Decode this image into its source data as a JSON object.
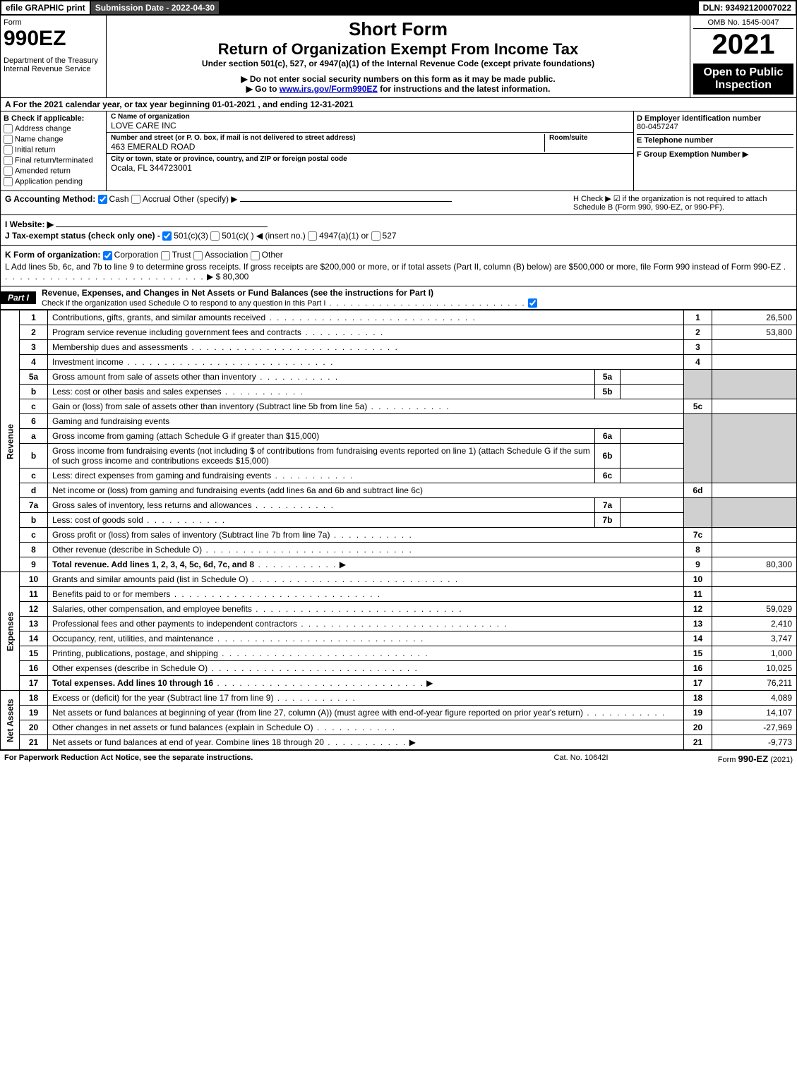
{
  "topbar": {
    "efile": "efile GRAPHIC print",
    "sub_date": "Submission Date - 2022-04-30",
    "dln": "DLN: 93492120007022"
  },
  "header": {
    "form_label": "Form",
    "form_no": "990EZ",
    "dept": "Department of the Treasury\nInternal Revenue Service",
    "short_form": "Short Form",
    "return_title": "Return of Organization Exempt From Income Tax",
    "under": "Under section 501(c), 527, or 4947(a)(1) of the Internal Revenue Code (except private foundations)",
    "no_ssn": "▶ Do not enter social security numbers on this form as it may be made public.",
    "goto_pre": "▶ Go to ",
    "goto_link": "www.irs.gov/Form990EZ",
    "goto_post": " for instructions and the latest information.",
    "omb": "OMB No. 1545-0047",
    "year": "2021",
    "open": "Open to Public Inspection"
  },
  "section_a": "A  For the 2021 calendar year, or tax year beginning 01-01-2021 , and ending 12-31-2021",
  "col_b": {
    "hdr": "B  Check if applicable:",
    "items": [
      "Address change",
      "Name change",
      "Initial return",
      "Final return/terminated",
      "Amended return",
      "Application pending"
    ]
  },
  "col_c": {
    "name_lbl": "C Name of organization",
    "name": "LOVE CARE INC",
    "street_lbl": "Number and street (or P. O. box, if mail is not delivered to street address)",
    "street": "463 EMERALD ROAD",
    "room_lbl": "Room/suite",
    "city_lbl": "City or town, state or province, country, and ZIP or foreign postal code",
    "city": "Ocala, FL  344723001"
  },
  "col_d": {
    "ein_lbl": "D Employer identification number",
    "ein": "80-0457247",
    "tel_lbl": "E Telephone number",
    "tel": "",
    "grp_lbl": "F Group Exemption Number  ▶",
    "grp": ""
  },
  "g": {
    "label": "G Accounting Method:",
    "cash": "Cash",
    "accrual": "Accrual",
    "other": "Other (specify) ▶"
  },
  "h": "H  Check ▶ ☑ if the organization is not required to attach Schedule B (Form 990, 990-EZ, or 990-PF).",
  "i": {
    "label": "I Website: ▶"
  },
  "j": {
    "label": "J Tax-exempt status (check only one) -",
    "o1": "501(c)(3)",
    "o2": "501(c)(  ) ◀ (insert no.)",
    "o3": "4947(a)(1) or",
    "o4": "527"
  },
  "k": {
    "label": "K Form of organization:",
    "o1": "Corporation",
    "o2": "Trust",
    "o3": "Association",
    "o4": "Other"
  },
  "l": {
    "text": "L Add lines 5b, 6c, and 7b to line 9 to determine gross receipts. If gross receipts are $200,000 or more, or if total assets (Part II, column (B) below) are $500,000 or more, file Form 990 instead of Form 990-EZ",
    "amount": "▶ $ 80,300"
  },
  "part1": {
    "tab": "Part I",
    "title": "Revenue, Expenses, and Changes in Net Assets or Fund Balances (see the instructions for Part I)",
    "check_line": "Check if the organization used Schedule O to respond to any question in this Part I"
  },
  "sections": {
    "revenue": "Revenue",
    "expenses": "Expenses",
    "netassets": "Net Assets"
  },
  "rows": {
    "r1": {
      "n": "1",
      "d": "Contributions, gifts, grants, and similar amounts received",
      "ln": "1",
      "v": "26,500"
    },
    "r2": {
      "n": "2",
      "d": "Program service revenue including government fees and contracts",
      "ln": "2",
      "v": "53,800"
    },
    "r3": {
      "n": "3",
      "d": "Membership dues and assessments",
      "ln": "3",
      "v": ""
    },
    "r4": {
      "n": "4",
      "d": "Investment income",
      "ln": "4",
      "v": ""
    },
    "r5a": {
      "n": "5a",
      "d": "Gross amount from sale of assets other than inventory",
      "sub": "5a"
    },
    "r5b": {
      "n": "b",
      "d": "Less: cost or other basis and sales expenses",
      "sub": "5b"
    },
    "r5c": {
      "n": "c",
      "d": "Gain or (loss) from sale of assets other than inventory (Subtract line 5b from line 5a)",
      "ln": "5c",
      "v": ""
    },
    "r6": {
      "n": "6",
      "d": "Gaming and fundraising events"
    },
    "r6a": {
      "n": "a",
      "d": "Gross income from gaming (attach Schedule G if greater than $15,000)",
      "sub": "6a"
    },
    "r6b": {
      "n": "b",
      "d": "Gross income from fundraising events (not including $                  of contributions from fundraising events reported on line 1) (attach Schedule G if the sum of such gross income and contributions exceeds $15,000)",
      "sub": "6b"
    },
    "r6c": {
      "n": "c",
      "d": "Less: direct expenses from gaming and fundraising events",
      "sub": "6c"
    },
    "r6d": {
      "n": "d",
      "d": "Net income or (loss) from gaming and fundraising events (add lines 6a and 6b and subtract line 6c)",
      "ln": "6d",
      "v": ""
    },
    "r7a": {
      "n": "7a",
      "d": "Gross sales of inventory, less returns and allowances",
      "sub": "7a"
    },
    "r7b": {
      "n": "b",
      "d": "Less: cost of goods sold",
      "sub": "7b"
    },
    "r7c": {
      "n": "c",
      "d": "Gross profit or (loss) from sales of inventory (Subtract line 7b from line 7a)",
      "ln": "7c",
      "v": ""
    },
    "r8": {
      "n": "8",
      "d": "Other revenue (describe in Schedule O)",
      "ln": "8",
      "v": ""
    },
    "r9": {
      "n": "9",
      "d": "Total revenue. Add lines 1, 2, 3, 4, 5c, 6d, 7c, and 8",
      "ln": "9",
      "v": "80,300"
    },
    "r10": {
      "n": "10",
      "d": "Grants and similar amounts paid (list in Schedule O)",
      "ln": "10",
      "v": ""
    },
    "r11": {
      "n": "11",
      "d": "Benefits paid to or for members",
      "ln": "11",
      "v": ""
    },
    "r12": {
      "n": "12",
      "d": "Salaries, other compensation, and employee benefits",
      "ln": "12",
      "v": "59,029"
    },
    "r13": {
      "n": "13",
      "d": "Professional fees and other payments to independent contractors",
      "ln": "13",
      "v": "2,410"
    },
    "r14": {
      "n": "14",
      "d": "Occupancy, rent, utilities, and maintenance",
      "ln": "14",
      "v": "3,747"
    },
    "r15": {
      "n": "15",
      "d": "Printing, publications, postage, and shipping",
      "ln": "15",
      "v": "1,000"
    },
    "r16": {
      "n": "16",
      "d": "Other expenses (describe in Schedule O)",
      "ln": "16",
      "v": "10,025"
    },
    "r17": {
      "n": "17",
      "d": "Total expenses. Add lines 10 through 16",
      "ln": "17",
      "v": "76,211"
    },
    "r18": {
      "n": "18",
      "d": "Excess or (deficit) for the year (Subtract line 17 from line 9)",
      "ln": "18",
      "v": "4,089"
    },
    "r19": {
      "n": "19",
      "d": "Net assets or fund balances at beginning of year (from line 27, column (A)) (must agree with end-of-year figure reported on prior year's return)",
      "ln": "19",
      "v": "14,107"
    },
    "r20": {
      "n": "20",
      "d": "Other changes in net assets or fund balances (explain in Schedule O)",
      "ln": "20",
      "v": "-27,969"
    },
    "r21": {
      "n": "21",
      "d": "Net assets or fund balances at end of year. Combine lines 18 through 20",
      "ln": "21",
      "v": "-9,773"
    }
  },
  "footer": {
    "left": "For Paperwork Reduction Act Notice, see the separate instructions.",
    "center": "Cat. No. 10642I",
    "right_pre": "Form ",
    "right_form": "990-EZ",
    "right_post": " (2021)"
  }
}
